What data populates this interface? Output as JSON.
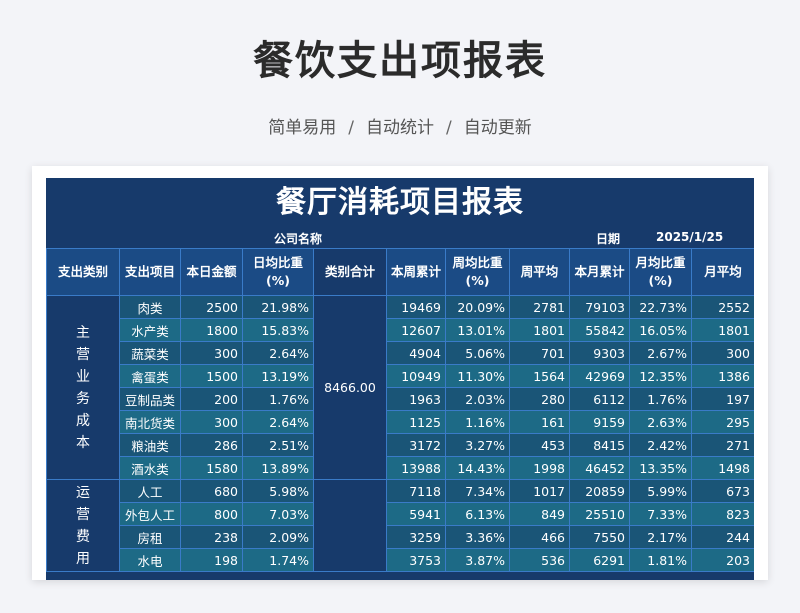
{
  "page": {
    "title": "餐饮支出项报表",
    "tags": [
      "简单易用",
      "自动统计",
      "自动更新"
    ]
  },
  "sheet": {
    "title": "餐厅消耗项目报表",
    "company_label": "公司名称",
    "date_label": "日期",
    "date_value": "2025/1/25",
    "headers": [
      "支出类别",
      "支出项目",
      "本日金额",
      "日均比重(%)",
      "类别合计",
      "本周累计",
      "周均比重(%)",
      "周平均",
      "本月累计",
      "月均比重(%)",
      "月平均"
    ],
    "groups": [
      {
        "category": "主营业务成本",
        "total": "8466.00",
        "rows": [
          {
            "item": "肉类",
            "day": "2500",
            "day_pct": "21.98%",
            "week": "19469",
            "week_pct": "20.09%",
            "week_avg": "2781",
            "month": "79103",
            "month_pct": "22.73%",
            "month_avg": "2552"
          },
          {
            "item": "水产类",
            "day": "1800",
            "day_pct": "15.83%",
            "week": "12607",
            "week_pct": "13.01%",
            "week_avg": "1801",
            "month": "55842",
            "month_pct": "16.05%",
            "month_avg": "1801"
          },
          {
            "item": "蔬菜类",
            "day": "300",
            "day_pct": "2.64%",
            "week": "4904",
            "week_pct": "5.06%",
            "week_avg": "701",
            "month": "9303",
            "month_pct": "2.67%",
            "month_avg": "300"
          },
          {
            "item": "禽蛋类",
            "day": "1500",
            "day_pct": "13.19%",
            "week": "10949",
            "week_pct": "11.30%",
            "week_avg": "1564",
            "month": "42969",
            "month_pct": "12.35%",
            "month_avg": "1386"
          },
          {
            "item": "豆制品类",
            "day": "200",
            "day_pct": "1.76%",
            "week": "1963",
            "week_pct": "2.03%",
            "week_avg": "280",
            "month": "6112",
            "month_pct": "1.76%",
            "month_avg": "197"
          },
          {
            "item": "南北货类",
            "day": "300",
            "day_pct": "2.64%",
            "week": "1125",
            "week_pct": "1.16%",
            "week_avg": "161",
            "month": "9159",
            "month_pct": "2.63%",
            "month_avg": "295"
          },
          {
            "item": "粮油类",
            "day": "286",
            "day_pct": "2.51%",
            "week": "3172",
            "week_pct": "3.27%",
            "week_avg": "453",
            "month": "8415",
            "month_pct": "2.42%",
            "month_avg": "271"
          },
          {
            "item": "酒水类",
            "day": "1580",
            "day_pct": "13.89%",
            "week": "13988",
            "week_pct": "14.43%",
            "week_avg": "1998",
            "month": "46452",
            "month_pct": "13.35%",
            "month_avg": "1498"
          }
        ]
      },
      {
        "category": "运营费用",
        "total": "",
        "rows": [
          {
            "item": "人工",
            "day": "680",
            "day_pct": "5.98%",
            "week": "7118",
            "week_pct": "7.34%",
            "week_avg": "1017",
            "month": "20859",
            "month_pct": "5.99%",
            "month_avg": "673"
          },
          {
            "item": "外包人工",
            "day": "800",
            "day_pct": "7.03%",
            "week": "5941",
            "week_pct": "6.13%",
            "week_avg": "849",
            "month": "25510",
            "month_pct": "7.33%",
            "month_avg": "823"
          },
          {
            "item": "房租",
            "day": "238",
            "day_pct": "2.09%",
            "week": "3259",
            "week_pct": "3.36%",
            "week_avg": "466",
            "month": "7550",
            "month_pct": "2.17%",
            "month_avg": "244"
          },
          {
            "item": "水电",
            "day": "198",
            "day_pct": "1.74%",
            "week": "3753",
            "week_pct": "3.87%",
            "week_avg": "536",
            "month": "6291",
            "month_pct": "1.81%",
            "month_avg": "203"
          }
        ]
      }
    ]
  }
}
